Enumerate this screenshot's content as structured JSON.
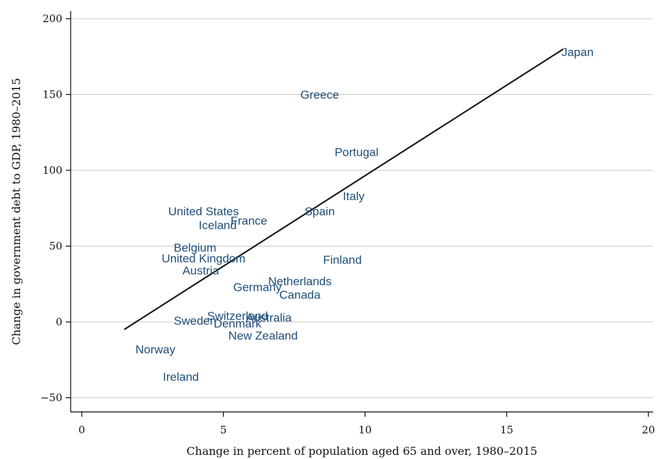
{
  "chart_data": {
    "type": "scatter",
    "title": "",
    "xlabel": "Change in percent of population aged 65 and over, 1980–2015",
    "ylabel": "Change in government debt to GDP, 1980–2015",
    "xlim": [
      0,
      20
    ],
    "ylim": [
      -50,
      200
    ],
    "x_ticks": [
      0,
      5,
      10,
      15,
      20
    ],
    "y_ticks": [
      -50,
      0,
      50,
      100,
      150,
      200
    ],
    "x_tick_labels": [
      "0",
      "5",
      "10",
      "15",
      "20"
    ],
    "y_tick_labels": [
      "−50",
      "0",
      "50",
      "100",
      "150",
      "200"
    ],
    "grid": "horizontal",
    "points": [
      {
        "label": "Japan",
        "x": 17.5,
        "y": 178
      },
      {
        "label": "Greece",
        "x": 8.4,
        "y": 150
      },
      {
        "label": "Portugal",
        "x": 9.7,
        "y": 112
      },
      {
        "label": "Italy",
        "x": 9.6,
        "y": 83
      },
      {
        "label": "Spain",
        "x": 8.4,
        "y": 73
      },
      {
        "label": "United States",
        "x": 4.3,
        "y": 73
      },
      {
        "label": "France",
        "x": 5.9,
        "y": 67
      },
      {
        "label": "Iceland",
        "x": 4.8,
        "y": 64
      },
      {
        "label": "Belgium",
        "x": 4.0,
        "y": 49
      },
      {
        "label": "United Kingdom",
        "x": 4.3,
        "y": 42
      },
      {
        "label": "Finland",
        "x": 9.2,
        "y": 41
      },
      {
        "label": "Austria",
        "x": 4.2,
        "y": 34
      },
      {
        "label": "Netherlands",
        "x": 7.7,
        "y": 27
      },
      {
        "label": "Germany",
        "x": 6.2,
        "y": 23
      },
      {
        "label": "Canada",
        "x": 7.7,
        "y": 18
      },
      {
        "label": "Switzerland",
        "x": 5.5,
        "y": 4
      },
      {
        "label": "Australia",
        "x": 6.6,
        "y": 3
      },
      {
        "label": "Sweden",
        "x": 4.0,
        "y": 1
      },
      {
        "label": "Denmark",
        "x": 5.5,
        "y": -1
      },
      {
        "label": "New Zealand",
        "x": 6.4,
        "y": -9
      },
      {
        "label": "Norway",
        "x": 2.6,
        "y": -18
      },
      {
        "label": "Ireland",
        "x": 3.5,
        "y": -36
      }
    ],
    "fit_line": {
      "x": [
        1.5,
        17.0
      ],
      "y": [
        -5,
        180
      ]
    }
  }
}
